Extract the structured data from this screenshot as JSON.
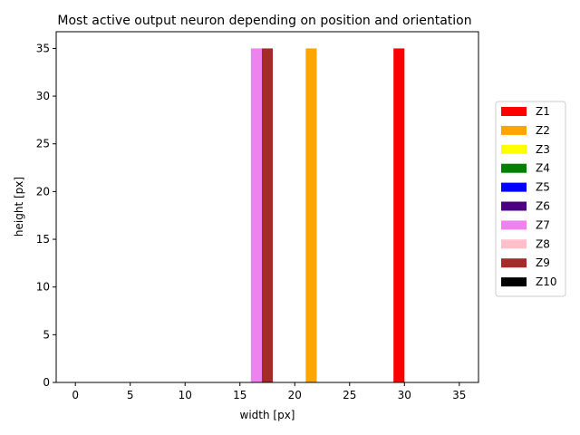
{
  "chart_data": {
    "type": "bar",
    "title": "Most active output neuron depending on position and orientation",
    "xlabel": "width [px]",
    "ylabel": "height [px]",
    "xlim": [
      -1.75,
      36.75
    ],
    "ylim": [
      0,
      36.75
    ],
    "xticks": [
      0,
      5,
      10,
      15,
      20,
      25,
      30,
      35
    ],
    "yticks": [
      0,
      5,
      10,
      15,
      20,
      25,
      30,
      35
    ],
    "grid": false,
    "legend_position": "right",
    "bar_width": 1.0,
    "series": [
      {
        "name": "Z1",
        "color": "#ff0000",
        "bars": [
          {
            "x": 29.5,
            "height": 35
          }
        ]
      },
      {
        "name": "Z2",
        "color": "#ffa500",
        "bars": [
          {
            "x": 21.5,
            "height": 35
          }
        ]
      },
      {
        "name": "Z3",
        "color": "#ffff00",
        "bars": []
      },
      {
        "name": "Z4",
        "color": "#008000",
        "bars": []
      },
      {
        "name": "Z5",
        "color": "#0000ff",
        "bars": []
      },
      {
        "name": "Z6",
        "color": "#4b0082",
        "bars": []
      },
      {
        "name": "Z7",
        "color": "#ee82ee",
        "bars": [
          {
            "x": 16.5,
            "height": 35
          }
        ]
      },
      {
        "name": "Z8",
        "color": "#ffc0cb",
        "bars": []
      },
      {
        "name": "Z9",
        "color": "#a52a2a",
        "bars": [
          {
            "x": 17.5,
            "height": 35
          }
        ]
      },
      {
        "name": "Z10",
        "color": "#000000",
        "bars": []
      }
    ]
  }
}
